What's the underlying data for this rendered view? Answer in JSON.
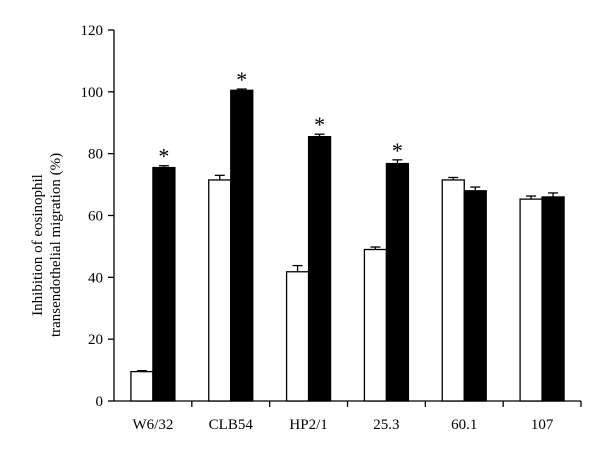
{
  "chart_data": {
    "type": "bar",
    "categories": [
      "W6/32",
      "CLB54",
      "HP2/1",
      "25.3",
      "60.1",
      "107"
    ],
    "series": [
      {
        "fill": "#ffffff",
        "values": [
          9.5,
          71.5,
          41.8,
          49.0,
          71.5,
          65.3
        ],
        "errors": [
          0.3,
          1.5,
          2.0,
          0.8,
          0.8,
          1.0
        ]
      },
      {
        "fill": "#000000",
        "values": [
          75.5,
          100.5,
          85.5,
          76.8,
          68.0,
          66.0
        ],
        "errors": [
          0.6,
          0.4,
          0.8,
          1.2,
          1.2,
          1.3
        ]
      }
    ],
    "significance": [
      "*",
      "*",
      "*",
      "*",
      "",
      ""
    ],
    "ylabel_lines": [
      "Inhibition of eosinophil",
      "transendothelial migration (%)"
    ],
    "yticks": [
      0,
      20,
      40,
      60,
      80,
      100,
      120
    ],
    "ylim": [
      0,
      120
    ],
    "xlabel": "",
    "grid": false,
    "legend": "none"
  }
}
